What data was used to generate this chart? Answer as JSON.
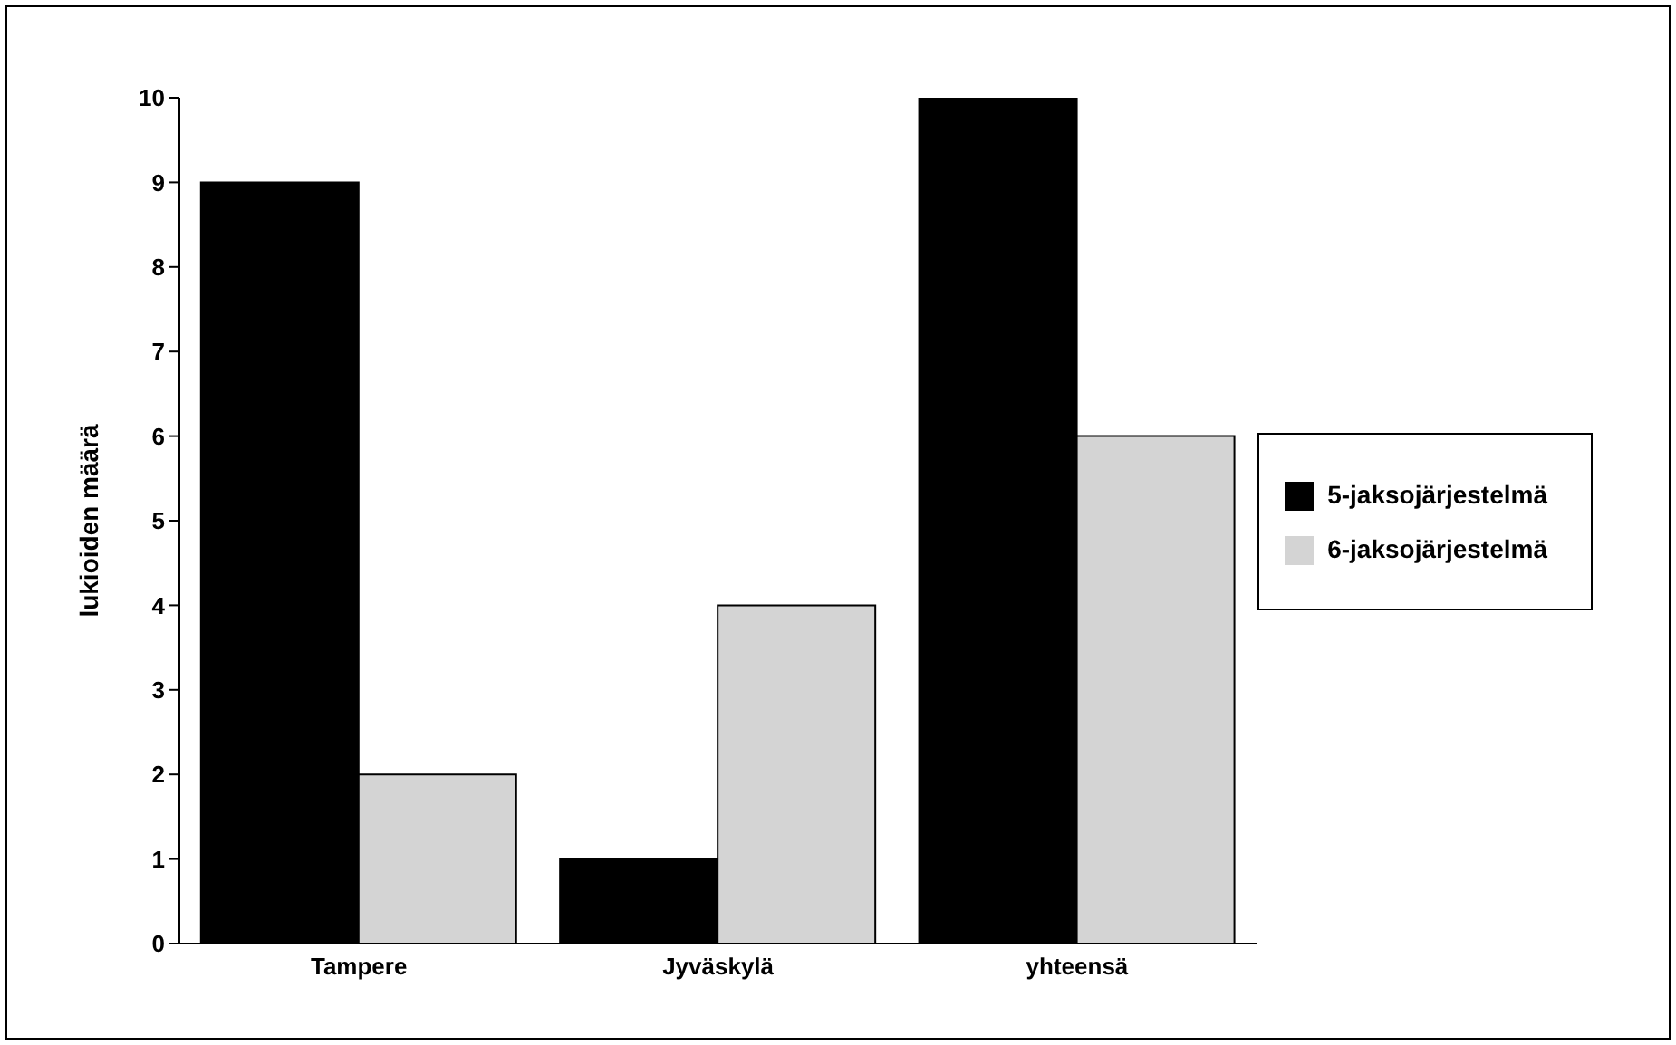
{
  "chart_data": {
    "type": "bar",
    "ylabel": "lukioiden määrä",
    "categories": [
      "Tampere",
      "Jyväskylä",
      "yhteensä"
    ],
    "series": [
      {
        "name": "5-jaksojärjestelmä",
        "color": "#000000",
        "values": [
          9,
          1,
          10
        ]
      },
      {
        "name": "6-jaksojärjestelmä",
        "color": "#d4d4d4",
        "values": [
          2,
          4,
          6
        ]
      }
    ],
    "ylim": [
      0,
      10
    ],
    "yticks": [
      0,
      1,
      2,
      3,
      4,
      5,
      6,
      7,
      8,
      9,
      10
    ],
    "grid": false,
    "legend": "right"
  }
}
